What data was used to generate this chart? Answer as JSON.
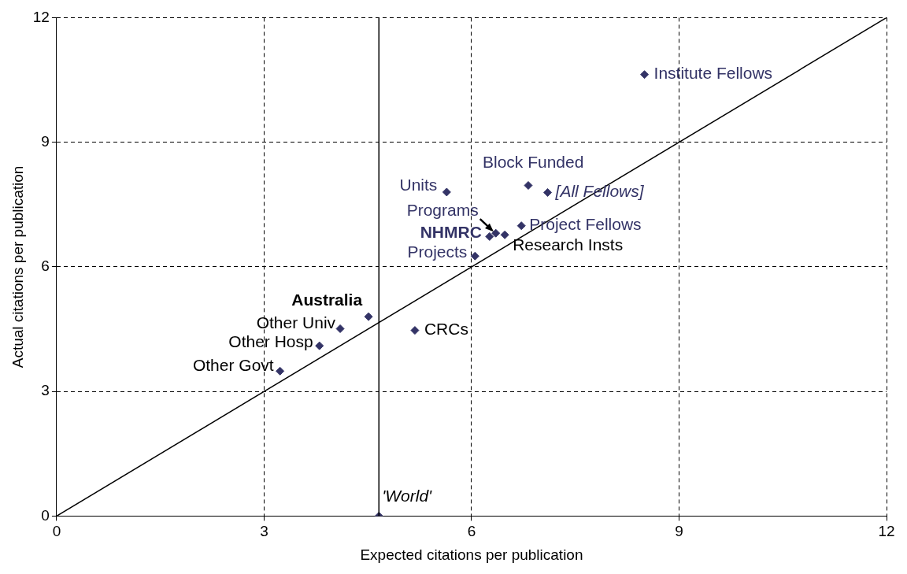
{
  "chart_data": {
    "type": "scatter",
    "xlabel": "Expected citations per publication",
    "ylabel": "Actual citations per publication",
    "xlim": [
      0,
      12
    ],
    "ylim": [
      0,
      12
    ],
    "xticks": [
      0,
      3,
      6,
      9,
      12
    ],
    "yticks": [
      0,
      3,
      6,
      9,
      12
    ],
    "grid": true,
    "legend": false,
    "marker": "diamond",
    "series": [
      {
        "color": "#333366",
        "x": [
          8.5,
          6.82,
          7.1,
          5.64,
          6.72,
          6.35,
          6.26,
          6.48,
          6.05,
          5.18,
          4.51,
          4.1,
          3.8,
          3.23,
          4.66
        ],
        "values": [
          10.63,
          7.96,
          7.79,
          7.8,
          6.99,
          6.81,
          6.73,
          6.77,
          6.26,
          4.47,
          4.8,
          4.51,
          4.1,
          3.49,
          0
        ]
      },
      {
        "type": "line",
        "color": "#000000",
        "marker": "none",
        "x": [
          0,
          12
        ],
        "values": [
          0,
          12
        ]
      }
    ],
    "ref_lines": [
      {
        "axis": "x",
        "value": 4.66,
        "color": "#000000"
      }
    ],
    "annotations": [
      {
        "text": "Institute Fellows",
        "x": 8.5,
        "y": 10.63
      },
      {
        "text": "Block Funded",
        "x": 6.82,
        "y": 7.96
      },
      {
        "text": "[All Fellows]",
        "x": 7.1,
        "y": 7.79
      },
      {
        "text": "Units",
        "x": 5.64,
        "y": 7.8
      },
      {
        "text": "Project Fellows",
        "x": 6.72,
        "y": 6.99
      },
      {
        "text": "Programs",
        "x": 6.35,
        "y": 6.81
      },
      {
        "text": "NHMRC",
        "x": 6.26,
        "y": 6.73
      },
      {
        "text": "Research Insts",
        "x": 6.48,
        "y": 6.77
      },
      {
        "text": "Projects",
        "x": 6.05,
        "y": 6.26
      },
      {
        "text": "CRCs",
        "x": 5.18,
        "y": 4.47
      },
      {
        "text": "Australia",
        "x": 4.51,
        "y": 4.8
      },
      {
        "text": "Other Univ",
        "x": 4.1,
        "y": 4.51
      },
      {
        "text": "Other Hosp",
        "x": 3.8,
        "y": 4.1
      },
      {
        "text": "Other Govt",
        "x": 3.23,
        "y": 3.49
      },
      {
        "text": "'World'",
        "x": 4.66,
        "y": 0
      }
    ]
  }
}
